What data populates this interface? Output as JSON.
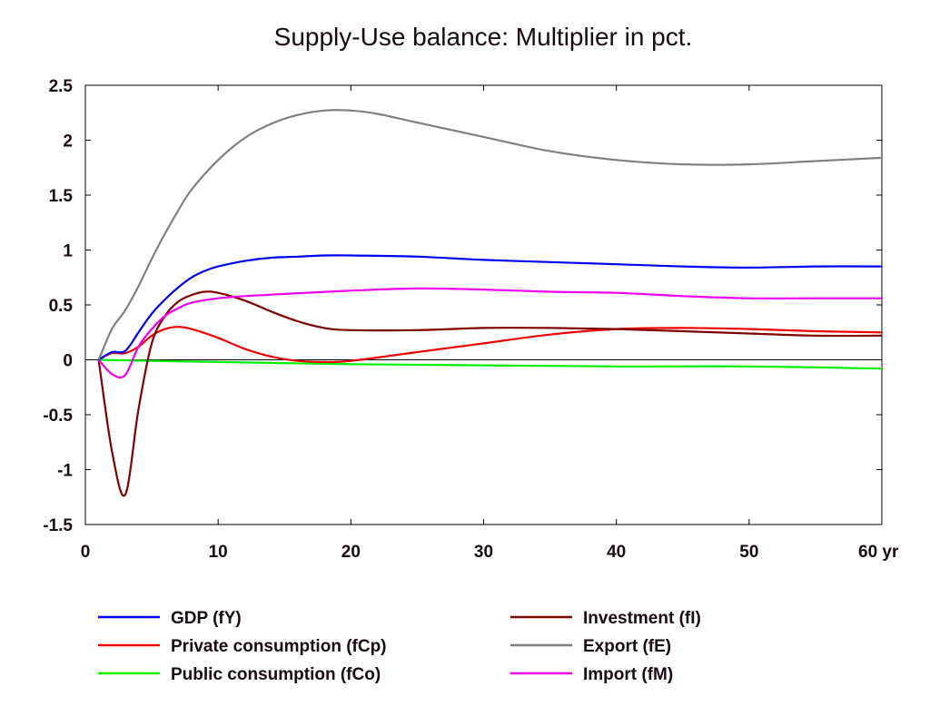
{
  "chart_data": {
    "type": "line",
    "title": "Supply-Use balance: Multiplier in pct.",
    "xlabel": "",
    "ylabel": "",
    "x_unit_label": "yr",
    "xlim": [
      0,
      60
    ],
    "ylim": [
      -1.5,
      2.5
    ],
    "x_ticks": [
      0,
      10,
      20,
      30,
      40,
      50,
      60
    ],
    "x_tick_labels": [
      "0",
      "10",
      "20",
      "30",
      "40",
      "50",
      "60 yr"
    ],
    "y_ticks": [
      -1.5,
      -1,
      -0.5,
      0,
      0.5,
      1,
      1.5,
      2,
      2.5
    ],
    "y_tick_labels": [
      "-1.5",
      "-1",
      "-0.5",
      "0",
      "0.5",
      "1",
      "1.5",
      "2",
      "2.5"
    ],
    "grid": false,
    "zero_line": true,
    "legend_position": "bottom",
    "series": [
      {
        "name": "GDP (fY)",
        "color": "#0000ee",
        "legend_col": 0,
        "legend_row": 0,
        "points": [
          [
            1,
            0
          ],
          [
            2,
            0.07
          ],
          [
            3,
            0.08
          ],
          [
            4,
            0.25
          ],
          [
            5,
            0.42
          ],
          [
            6,
            0.55
          ],
          [
            7,
            0.66
          ],
          [
            8,
            0.75
          ],
          [
            9,
            0.81
          ],
          [
            10,
            0.85
          ],
          [
            12,
            0.9
          ],
          [
            14,
            0.93
          ],
          [
            16,
            0.94
          ],
          [
            18,
            0.95
          ],
          [
            20,
            0.95
          ],
          [
            25,
            0.94
          ],
          [
            30,
            0.91
          ],
          [
            35,
            0.89
          ],
          [
            40,
            0.87
          ],
          [
            45,
            0.85
          ],
          [
            50,
            0.84
          ],
          [
            55,
            0.85
          ],
          [
            60,
            0.85
          ]
        ]
      },
      {
        "name": "Private consumption (fCp)",
        "color": "#ee0000",
        "legend_col": 0,
        "legend_row": 1,
        "points": [
          [
            1,
            0
          ],
          [
            2,
            0.06
          ],
          [
            3,
            0.06
          ],
          [
            4,
            0.12
          ],
          [
            5,
            0.22
          ],
          [
            6,
            0.28
          ],
          [
            7,
            0.3
          ],
          [
            8,
            0.28
          ],
          [
            10,
            0.2
          ],
          [
            12,
            0.1
          ],
          [
            14,
            0.03
          ],
          [
            16,
            -0.01
          ],
          [
            18,
            -0.02
          ],
          [
            20,
            -0.01
          ],
          [
            25,
            0.07
          ],
          [
            30,
            0.15
          ],
          [
            35,
            0.23
          ],
          [
            40,
            0.28
          ],
          [
            45,
            0.29
          ],
          [
            50,
            0.28
          ],
          [
            55,
            0.26
          ],
          [
            60,
            0.25
          ]
        ]
      },
      {
        "name": "Public consumption (fCo)",
        "color": "#00ee00",
        "legend_col": 0,
        "legend_row": 2,
        "points": [
          [
            1,
            0
          ],
          [
            5,
            -0.01
          ],
          [
            10,
            -0.02
          ],
          [
            20,
            -0.04
          ],
          [
            30,
            -0.05
          ],
          [
            40,
            -0.06
          ],
          [
            50,
            -0.06
          ],
          [
            60,
            -0.08
          ]
        ]
      },
      {
        "name": "Investment (fI)",
        "color": "#800000",
        "legend_col": 1,
        "legend_row": 0,
        "points": [
          [
            1,
            0
          ],
          [
            2,
            -0.83
          ],
          [
            3,
            -1.23
          ],
          [
            4,
            -0.45
          ],
          [
            5,
            0.15
          ],
          [
            6,
            0.4
          ],
          [
            7,
            0.53
          ],
          [
            8,
            0.59
          ],
          [
            9,
            0.62
          ],
          [
            10,
            0.61
          ],
          [
            12,
            0.54
          ],
          [
            14,
            0.44
          ],
          [
            16,
            0.35
          ],
          [
            18,
            0.29
          ],
          [
            20,
            0.27
          ],
          [
            25,
            0.27
          ],
          [
            30,
            0.29
          ],
          [
            35,
            0.29
          ],
          [
            40,
            0.28
          ],
          [
            45,
            0.26
          ],
          [
            50,
            0.24
          ],
          [
            55,
            0.22
          ],
          [
            60,
            0.22
          ]
        ]
      },
      {
        "name": "Export (fE)",
        "color": "#808080",
        "legend_col": 1,
        "legend_row": 1,
        "points": [
          [
            1,
            0
          ],
          [
            2,
            0.28
          ],
          [
            3,
            0.45
          ],
          [
            4,
            0.67
          ],
          [
            5,
            0.92
          ],
          [
            6,
            1.15
          ],
          [
            7,
            1.36
          ],
          [
            8,
            1.55
          ],
          [
            10,
            1.82
          ],
          [
            12,
            2.02
          ],
          [
            14,
            2.15
          ],
          [
            16,
            2.23
          ],
          [
            18,
            2.27
          ],
          [
            20,
            2.27
          ],
          [
            22,
            2.24
          ],
          [
            25,
            2.16
          ],
          [
            30,
            2.03
          ],
          [
            35,
            1.9
          ],
          [
            40,
            1.82
          ],
          [
            45,
            1.78
          ],
          [
            50,
            1.78
          ],
          [
            55,
            1.81
          ],
          [
            60,
            1.84
          ]
        ]
      },
      {
        "name": "Import (fM)",
        "color": "#ee00ee",
        "legend_col": 1,
        "legend_row": 2,
        "points": [
          [
            1,
            0
          ],
          [
            2,
            -0.13
          ],
          [
            3,
            -0.14
          ],
          [
            4,
            0.12
          ],
          [
            5,
            0.28
          ],
          [
            6,
            0.4
          ],
          [
            7,
            0.47
          ],
          [
            8,
            0.52
          ],
          [
            10,
            0.56
          ],
          [
            12,
            0.58
          ],
          [
            15,
            0.6
          ],
          [
            20,
            0.63
          ],
          [
            25,
            0.65
          ],
          [
            30,
            0.64
          ],
          [
            35,
            0.62
          ],
          [
            40,
            0.61
          ],
          [
            45,
            0.58
          ],
          [
            50,
            0.56
          ],
          [
            55,
            0.56
          ],
          [
            60,
            0.56
          ]
        ]
      }
    ]
  }
}
